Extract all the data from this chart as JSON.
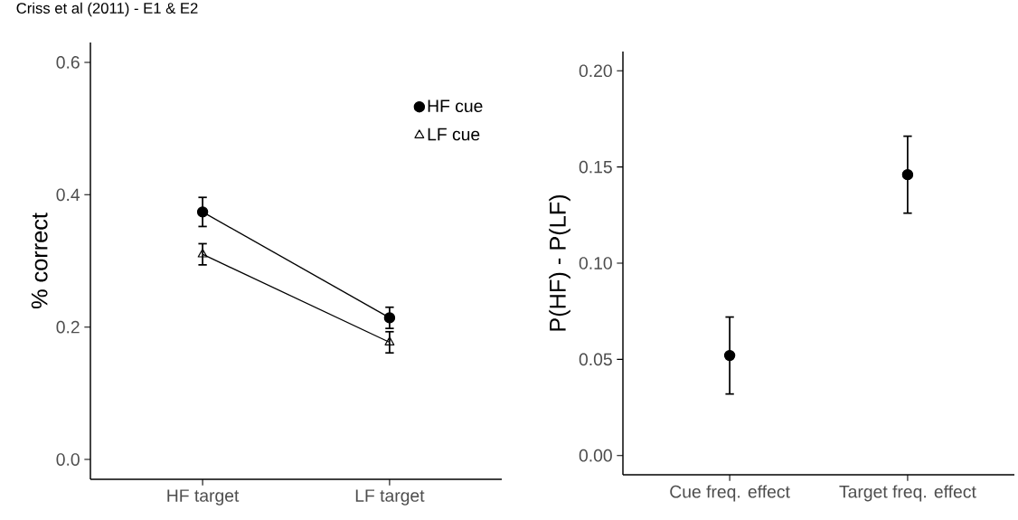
{
  "chart_data": [
    {
      "type": "line",
      "title": "Criss et al (2011) - E1 & E2",
      "ylabel": "% correct",
      "categories": [
        "HF target",
        "LF target"
      ],
      "series": [
        {
          "name": "HF cue",
          "color": "#000000",
          "marker": "circle",
          "values": [
            0.374,
            0.214
          ],
          "errors": [
            0.022,
            0.016
          ]
        },
        {
          "name": "LF cue",
          "color": "#000000",
          "marker": "triangle",
          "values": [
            0.31,
            0.177
          ],
          "errors": [
            0.016,
            0.016
          ]
        }
      ],
      "ylim": [
        -0.03,
        0.63
      ],
      "yticks": [
        {
          "value": 0,
          "label": "0.0"
        },
        {
          "value": 0.2,
          "label": "0.2"
        },
        {
          "value": 0.4,
          "label": "0.4"
        },
        {
          "value": 0.6,
          "label": "0.6"
        }
      ],
      "legend": "top right",
      "grid": false
    },
    {
      "type": "scatter",
      "ylabel": "P(HF) - P(LF)",
      "categories": [
        "Cue freq. effect",
        "Target freq. effect"
      ],
      "series": [
        {
          "color": "#000000",
          "marker": "circle",
          "values": [
            0.052,
            0.146
          ],
          "errors": [
            0.02,
            0.02
          ]
        }
      ],
      "ylim": [
        -0.01,
        0.21
      ],
      "yticks": [
        {
          "value": 0,
          "label": "0.00"
        },
        {
          "value": 0.05,
          "label": "0.05"
        },
        {
          "value": 0.1,
          "label": "0.10"
        },
        {
          "value": 0.15,
          "label": "0.15"
        },
        {
          "value": 0.2,
          "label": "0.20"
        }
      ],
      "grid": false
    }
  ]
}
